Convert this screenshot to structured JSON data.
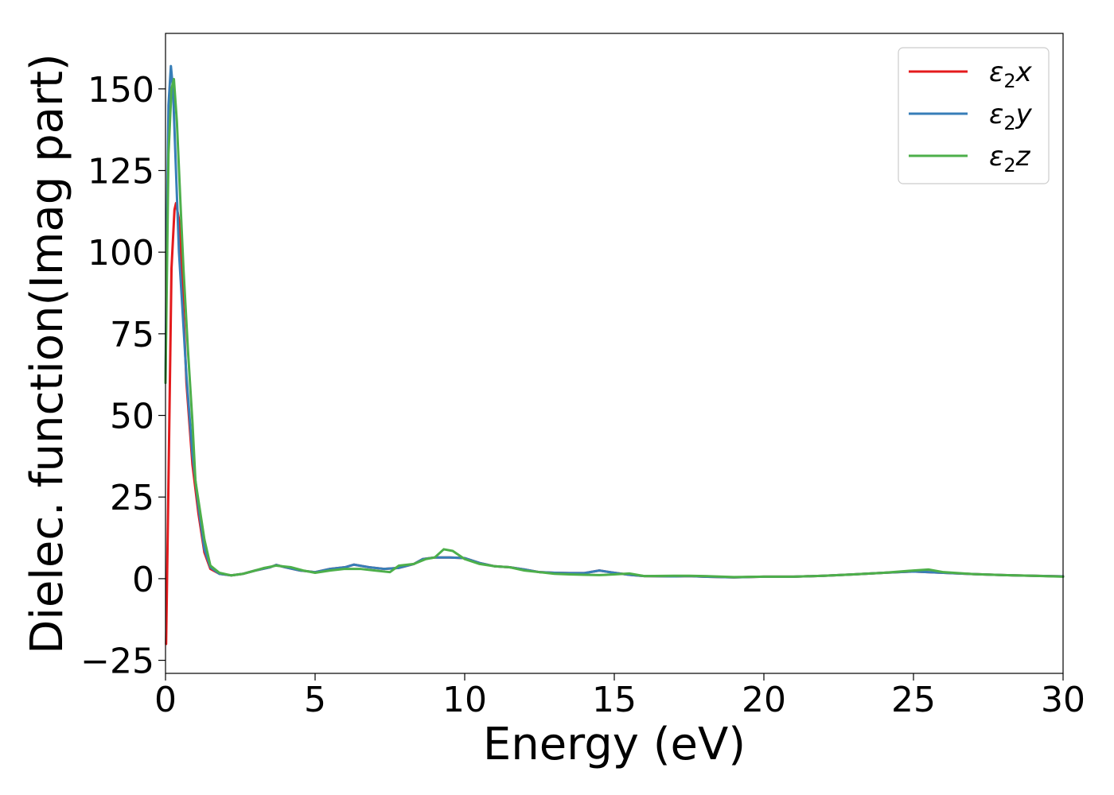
{
  "chart_data": {
    "type": "line",
    "xlabel": "Energy (eV)",
    "ylabel": "Dielec. function(Imag part)",
    "xlim": [
      0,
      30
    ],
    "ylim": [
      -29,
      167
    ],
    "x_ticks": [
      "0",
      "5",
      "10",
      "15",
      "20",
      "25",
      "30"
    ],
    "y_ticks": [
      "−25",
      "0",
      "25",
      "50",
      "75",
      "100",
      "125",
      "150"
    ],
    "grid": false,
    "legend_position": "top-right",
    "series": [
      {
        "name": "ε₂x",
        "legend": {
          "base": "ε",
          "sub": "2",
          "tail": "x"
        },
        "color": "#e41a1c",
        "x": [
          0.02,
          0.1,
          0.2,
          0.3,
          0.35,
          0.45,
          0.55,
          0.7,
          0.9,
          1.1,
          1.3,
          1.5,
          1.8,
          2.2,
          2.6,
          3.0,
          3.5,
          3.7,
          4.0,
          4.5,
          5.0,
          5.5,
          6.0,
          6.3,
          6.8,
          7.3,
          7.8,
          8.3,
          8.6,
          9.0,
          9.5,
          10.0,
          10.5,
          11.0,
          11.5,
          12.0,
          12.5,
          13.0,
          13.5,
          14.0,
          14.5,
          15.0,
          15.5,
          16.0,
          17.0,
          17.5,
          18.0,
          19.0,
          20.0,
          21.0,
          22.0,
          23.0,
          24.0,
          25.0,
          26.0,
          27.0,
          28.0,
          29.0,
          30.0
        ],
        "values": [
          -20,
          30,
          95,
          113,
          115,
          110,
          93,
          60,
          35,
          20,
          8,
          3,
          1.5,
          1,
          1.5,
          2.5,
          3.5,
          4.2,
          3.5,
          2.5,
          2,
          3,
          3.5,
          4.3,
          3.5,
          3,
          3.3,
          4.5,
          6,
          6.5,
          6.5,
          6.3,
          4.8,
          3.8,
          3.5,
          2.8,
          2,
          1.8,
          1.7,
          1.7,
          2.5,
          1.8,
          1.2,
          0.8,
          0.7,
          0.8,
          0.6,
          0.4,
          0.6,
          0.6,
          0.9,
          1.3,
          1.8,
          2.2,
          1.8,
          1.4,
          1.1,
          0.9,
          0.7
        ]
      },
      {
        "name": "ε₂y",
        "legend": {
          "base": "ε",
          "sub": "2",
          "tail": "y"
        },
        "color": "#377eb8",
        "x": [
          0.0,
          0.05,
          0.1,
          0.18,
          0.25,
          0.35,
          0.45,
          0.55,
          0.7,
          0.9,
          1.1,
          1.3,
          1.5,
          1.8,
          2.2,
          2.6,
          3.0,
          3.5,
          3.7,
          4.0,
          4.5,
          5.0,
          5.5,
          6.0,
          6.3,
          6.8,
          7.3,
          7.8,
          8.3,
          8.6,
          9.0,
          9.5,
          10.0,
          10.5,
          11.0,
          11.5,
          12.0,
          12.5,
          13.0,
          13.5,
          14.0,
          14.5,
          15.0,
          15.5,
          16.0,
          17.0,
          17.5,
          18.0,
          19.0,
          20.0,
          21.0,
          22.0,
          23.0,
          24.0,
          25.0,
          26.0,
          27.0,
          28.0,
          29.0,
          30.0
        ],
        "values": [
          60,
          110,
          145,
          157,
          150,
          125,
          100,
          85,
          62,
          38,
          22,
          9,
          3.5,
          1.5,
          1,
          1.5,
          2.5,
          3.5,
          4.2,
          3.5,
          2.5,
          2,
          3,
          3.5,
          4.3,
          3.5,
          3,
          3.3,
          4.5,
          6,
          6.5,
          6.5,
          6.3,
          4.8,
          3.8,
          3.5,
          2.8,
          2,
          1.8,
          1.7,
          1.7,
          2.5,
          1.8,
          1.2,
          0.8,
          0.7,
          0.8,
          0.6,
          0.4,
          0.6,
          0.6,
          0.9,
          1.3,
          1.8,
          2.2,
          1.8,
          1.4,
          1.1,
          0.9,
          0.7
        ]
      },
      {
        "name": "ε₂z",
        "legend": {
          "base": "ε",
          "sub": "2",
          "tail": "z"
        },
        "color": "#4daf4a",
        "x": [
          0.0,
          0.05,
          0.1,
          0.2,
          0.28,
          0.38,
          0.5,
          0.6,
          0.75,
          0.9,
          1.0,
          1.1,
          1.3,
          1.5,
          1.8,
          2.2,
          2.6,
          3.0,
          3.3,
          3.7,
          4.2,
          4.6,
          5.0,
          5.5,
          6.0,
          6.5,
          7.0,
          7.5,
          7.8,
          8.3,
          8.7,
          9.0,
          9.3,
          9.6,
          10.0,
          10.5,
          11.0,
          11.5,
          12.0,
          12.5,
          13.0,
          13.5,
          14.0,
          14.5,
          15.0,
          15.5,
          16.0,
          17.0,
          17.5,
          18.0,
          19.0,
          20.0,
          21.0,
          22.0,
          23.0,
          24.0,
          25.0,
          25.5,
          26.0,
          27.0,
          28.0,
          29.0,
          30.0
        ],
        "values": [
          60,
          95,
          130,
          150,
          153,
          140,
          115,
          95,
          70,
          48,
          30,
          24,
          12,
          4,
          1.8,
          1,
          1.5,
          2.5,
          3.3,
          4,
          3.5,
          2.5,
          1.8,
          2.5,
          3,
          3,
          2.5,
          2,
          4,
          4.5,
          6,
          6.5,
          9,
          8.5,
          6,
          4.5,
          3.8,
          3.5,
          2.5,
          2,
          1.5,
          1.3,
          1.2,
          1.1,
          1.3,
          1.6,
          0.8,
          0.9,
          0.9,
          0.8,
          0.5,
          0.6,
          0.6,
          0.9,
          1.3,
          1.8,
          2.5,
          2.8,
          2,
          1.4,
          1.1,
          0.9,
          0.6
        ]
      }
    ]
  }
}
